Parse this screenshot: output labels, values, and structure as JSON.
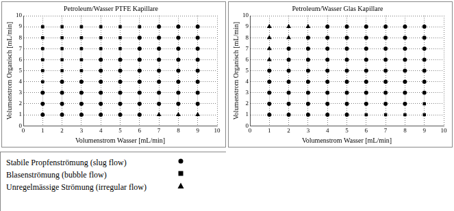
{
  "chart_data": [
    {
      "type": "scatter",
      "title": "Petroleum/Wasser PTFE Kapillare",
      "x_label": "Volumenstrom Wasser [mL/min]",
      "y_label": "Volumenstrom Organisch [mL/min]",
      "xlim": [
        0,
        10
      ],
      "ylim": [
        0,
        10
      ],
      "xticks": [
        0,
        1,
        2,
        3,
        4,
        5,
        6,
        7,
        8,
        9,
        10
      ],
      "yticks": [
        0,
        1,
        2,
        3,
        4,
        5,
        6,
        7,
        8,
        9,
        10
      ],
      "grid": true,
      "legend": "bottom",
      "series": [
        {
          "name": "Stabile Propfenströmung (slug flow)",
          "marker": "circle",
          "color": "#000000",
          "x": [
            7,
            8,
            9,
            6,
            7,
            8,
            9,
            6,
            7,
            8,
            9,
            4,
            5,
            6,
            7,
            8,
            9,
            4,
            5,
            6,
            7,
            8,
            9,
            2,
            3,
            4,
            5,
            6,
            7,
            8,
            9,
            1,
            2,
            3,
            4,
            5,
            6,
            7,
            8,
            9,
            1,
            2,
            3,
            4,
            5,
            6,
            7,
            8,
            9,
            1,
            2,
            3,
            4,
            5,
            6
          ],
          "values": [
            9,
            9,
            9,
            8,
            8,
            8,
            8,
            7,
            7,
            7,
            7,
            6,
            6,
            6,
            6,
            6,
            6,
            5,
            5,
            5,
            5,
            5,
            5,
            4,
            4,
            4,
            4,
            4,
            4,
            4,
            4,
            3,
            3,
            3,
            3,
            3,
            3,
            3,
            3,
            3,
            2,
            2,
            2,
            2,
            2,
            2,
            2,
            2,
            2,
            1,
            1,
            1,
            1,
            1,
            1
          ]
        },
        {
          "name": "Blasenströmung (bubble flow)",
          "marker": "square",
          "color": "#000000",
          "x": [
            1,
            2,
            3,
            4,
            5,
            6,
            1,
            2,
            3,
            4,
            5,
            1,
            2,
            3,
            4,
            5,
            1,
            2,
            3,
            1,
            2,
            3,
            1
          ],
          "values": [
            9,
            9,
            9,
            9,
            9,
            9,
            8,
            8,
            8,
            8,
            8,
            7,
            7,
            7,
            7,
            7,
            6,
            6,
            6,
            5,
            5,
            5,
            4
          ]
        },
        {
          "name": "Unregelmässige Strömung (irregular flow)",
          "marker": "triangle",
          "color": "#000000",
          "x": [
            7,
            8,
            9
          ],
          "values": [
            1,
            1,
            1
          ]
        }
      ]
    },
    {
      "type": "scatter",
      "title": "Petroleum/Wasser Glas Kapillare",
      "x_label": "Volumenstrom Wasser [mL/min]",
      "y_label": "Volumenstrom Organisch [mL/min]",
      "xlim": [
        0,
        10
      ],
      "ylim": [
        0,
        10
      ],
      "xticks": [
        0,
        1,
        2,
        3,
        4,
        5,
        6,
        7,
        8,
        9,
        10
      ],
      "yticks": [
        0,
        1,
        2,
        3,
        4,
        5,
        6,
        7,
        8,
        9,
        10
      ],
      "grid": true,
      "series": [
        {
          "name": "Stabile Propfenströmung (slug flow)",
          "marker": "circle",
          "color": "#000000",
          "x": [
            4,
            5,
            6,
            7,
            8,
            9,
            3,
            4,
            5,
            6,
            7,
            8,
            9,
            2,
            3,
            4,
            5,
            6,
            7,
            8,
            9,
            2,
            3,
            4,
            5,
            6,
            7,
            8,
            9,
            1,
            2,
            3,
            4,
            5,
            6,
            7,
            8,
            9,
            1,
            2,
            3,
            4,
            5,
            6,
            7,
            8,
            9,
            1,
            2,
            3,
            4,
            5,
            6,
            7,
            8,
            9,
            1,
            2,
            3,
            4,
            5,
            6,
            7,
            8,
            1,
            2,
            3,
            4,
            5
          ],
          "values": [
            9,
            9,
            9,
            9,
            9,
            9,
            8,
            8,
            8,
            8,
            8,
            8,
            8,
            7,
            7,
            7,
            7,
            7,
            7,
            7,
            7,
            6,
            6,
            6,
            6,
            6,
            6,
            6,
            6,
            5,
            5,
            5,
            5,
            5,
            5,
            5,
            5,
            5,
            4,
            4,
            4,
            4,
            4,
            4,
            4,
            4,
            4,
            3,
            3,
            3,
            3,
            3,
            3,
            3,
            3,
            3,
            2,
            2,
            2,
            2,
            2,
            2,
            2,
            2,
            1,
            1,
            1,
            1,
            1
          ]
        },
        {
          "name": "Blasenströmung (bubble flow)",
          "marker": "square",
          "color": "#000000",
          "x": [
            6,
            7,
            8,
            9,
            9
          ],
          "values": [
            1,
            1,
            1,
            1,
            2
          ]
        },
        {
          "name": "Unregelmässige Strömung (irregular flow)",
          "marker": "triangle",
          "color": "#000000",
          "x": [
            1,
            2,
            3,
            1,
            2,
            1,
            1
          ],
          "values": [
            9,
            9,
            9,
            8,
            8,
            7,
            6
          ]
        }
      ]
    }
  ]
}
